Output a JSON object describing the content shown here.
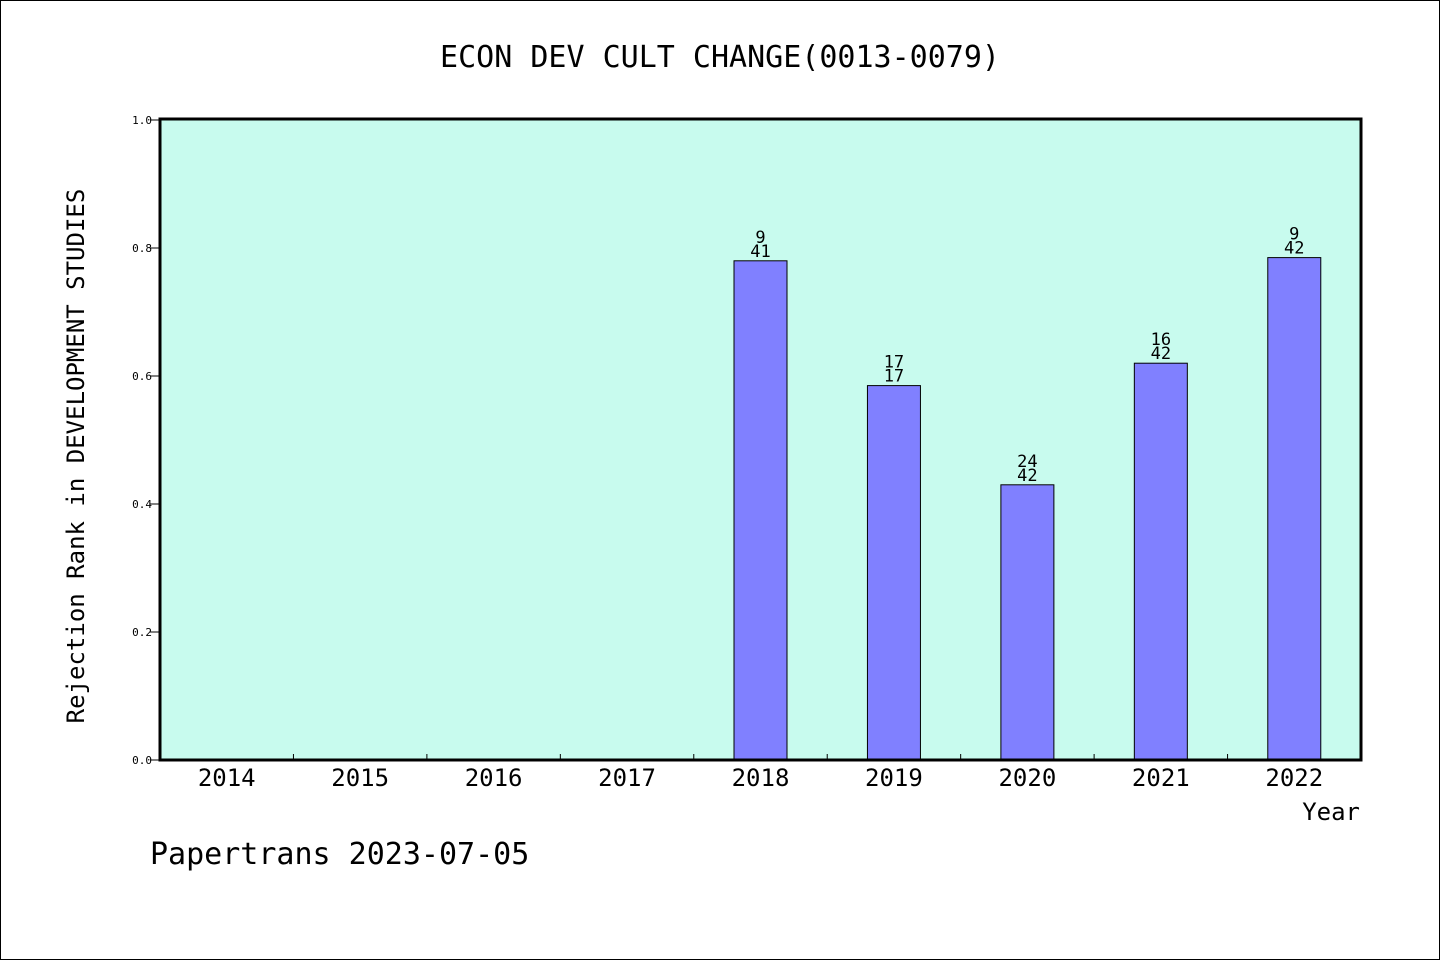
{
  "chart_data": {
    "type": "bar",
    "title": "ECON DEV CULT CHANGE(0013-0079)",
    "xlabel": "Year",
    "ylabel": "Rejection Rank in DEVELOPMENT STUDIES",
    "categories": [
      "2014",
      "2015",
      "2016",
      "2017",
      "2018",
      "2019",
      "2020",
      "2021",
      "2022"
    ],
    "values": [
      null,
      null,
      null,
      null,
      0.78,
      0.585,
      0.43,
      0.62,
      0.785
    ],
    "bar_labels": [
      null,
      null,
      null,
      null,
      {
        "top": "9",
        "bottom": "41"
      },
      {
        "top": "17",
        "bottom": "17"
      },
      {
        "top": "24",
        "bottom": "42"
      },
      {
        "top": "16",
        "bottom": "42"
      },
      {
        "top": "9",
        "bottom": "42"
      }
    ],
    "ylim": [
      0,
      1.0
    ],
    "yticks": [
      "0.0",
      "0.2",
      "0.4",
      "0.6",
      "0.8",
      "1.0"
    ],
    "grid": false,
    "colors": {
      "plot_background": "#c8fbee",
      "bar_fill": "#8080ff",
      "axis": "#000000"
    }
  },
  "footer": {
    "text": "Papertrans 2023-07-05"
  }
}
